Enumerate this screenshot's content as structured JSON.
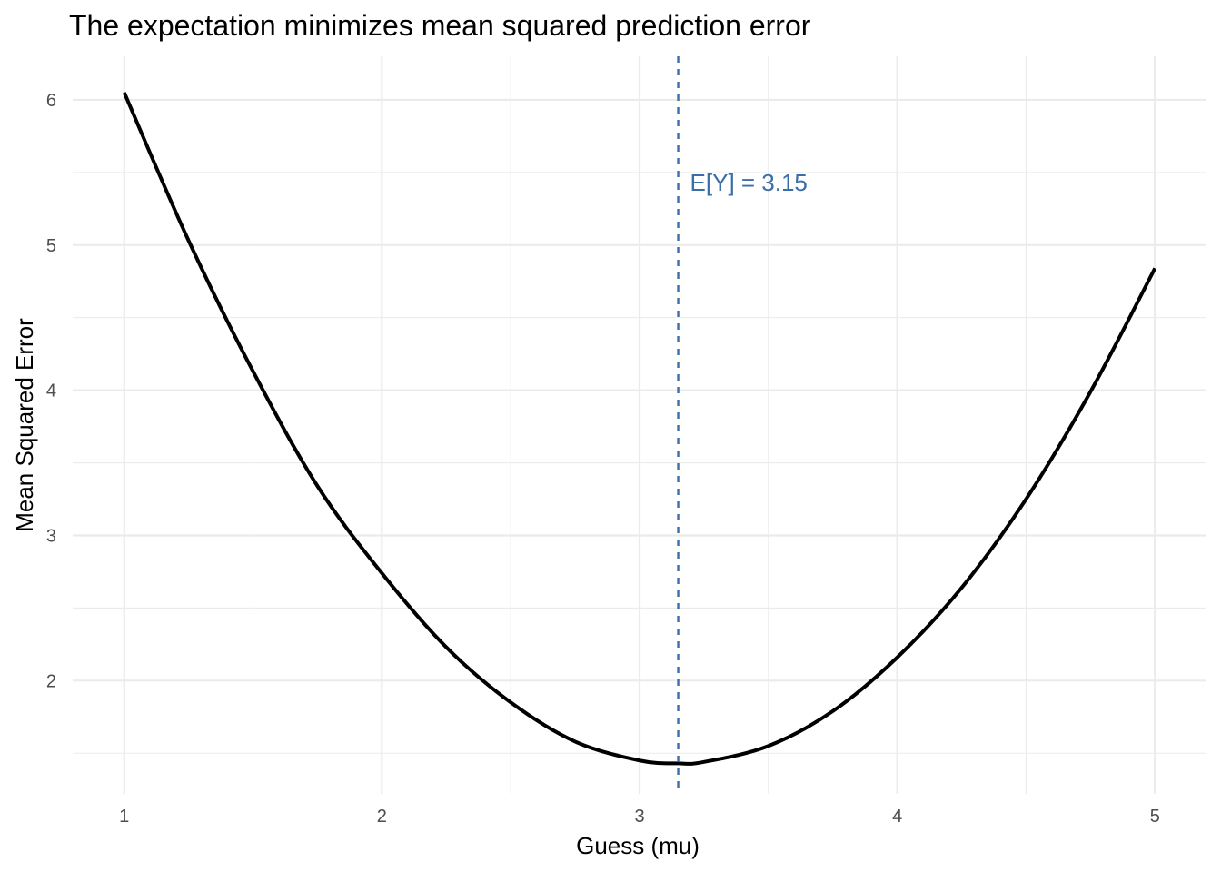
{
  "chart_data": {
    "type": "line",
    "title": "The expectation minimizes mean squared prediction error",
    "xlabel": "Guess (mu)",
    "ylabel": "Mean Squared Error",
    "xlim": [
      0.8,
      5.2
    ],
    "ylim": [
      1.22,
      6.3
    ],
    "x_ticks": [
      1,
      2,
      3,
      4,
      5
    ],
    "x_tick_labels": [
      "1",
      "2",
      "3",
      "4",
      "5"
    ],
    "x_minor_ticks": [
      1.5,
      2.5,
      3.5,
      4.5
    ],
    "y_ticks": [
      2,
      3,
      4,
      5,
      6
    ],
    "y_tick_labels": [
      "2",
      "3",
      "4",
      "5",
      "6"
    ],
    "y_minor_ticks": [
      1.5,
      2.5,
      3.5,
      4.5,
      5.5
    ],
    "grid": true,
    "series": [
      {
        "x": [
          1.0,
          1.25,
          1.5,
          1.75,
          2.0,
          2.25,
          2.5,
          2.75,
          3.0,
          3.15,
          3.25,
          3.5,
          3.75,
          4.0,
          4.25,
          4.5,
          4.75,
          5.0
        ],
        "y": [
          6.05,
          5.03,
          4.13,
          3.34,
          2.74,
          2.23,
          1.85,
          1.58,
          1.45,
          1.43,
          1.44,
          1.55,
          1.79,
          2.16,
          2.64,
          3.25,
          3.99,
          4.84
        ],
        "color": "#000000"
      }
    ],
    "reference_line": {
      "orientation": "vertical",
      "x": 3.15,
      "style": "dashed",
      "color": "#3B6EA8",
      "label": "E[Y] = 3.15",
      "label_y": 5.43
    }
  }
}
